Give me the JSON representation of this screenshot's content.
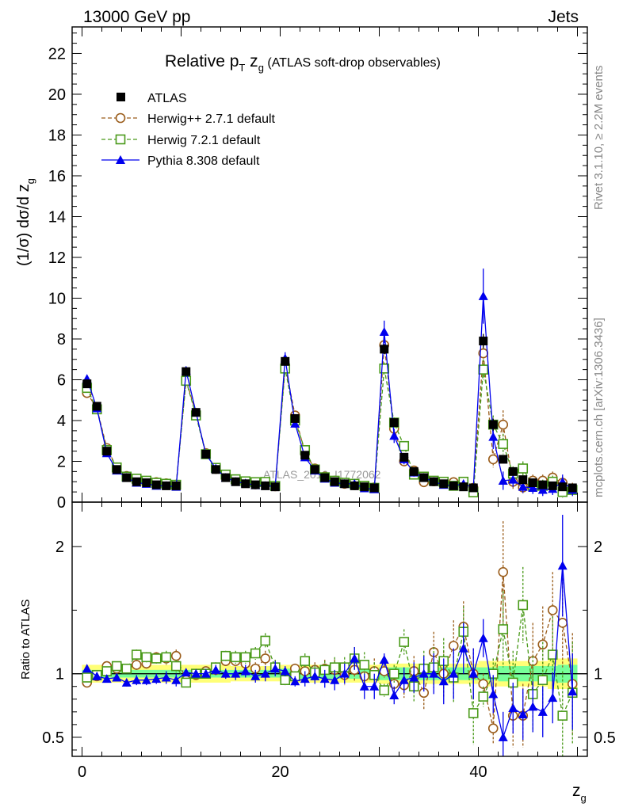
{
  "header": {
    "left": "13000 GeV pp",
    "right": "Jets"
  },
  "side_labels": {
    "rivet": "Rivet 3.1.10, ≥ 2.2M events",
    "mcplots": "mcplots.cern.ch [arXiv:1306.3436]"
  },
  "watermark": "ATLAS_2019_I1772062",
  "chart_data": [
    {
      "type": "scatter",
      "panel": "main",
      "title_main": "Relative p",
      "title_sub1": "T",
      "title_mid": " z",
      "title_sub2": "g",
      "title_tail": " (ATLAS soft-drop observables)",
      "ylabel": "(1/σ) dσ/d z",
      "ylabel_sub": "g",
      "xlabel": "z",
      "xlabel_sub": "g",
      "xlim": [
        -1,
        51
      ],
      "ylim": [
        0,
        23.3
      ],
      "yticks": [
        0,
        2,
        4,
        6,
        8,
        10,
        12,
        14,
        16,
        18,
        20,
        22
      ],
      "ytick_labels": [
        "0",
        "2",
        "4",
        "6",
        "8",
        "10",
        "12",
        "14",
        "16",
        "18",
        "20",
        "22"
      ],
      "x": [
        0.5,
        1.5,
        2.5,
        3.5,
        4.5,
        5.5,
        6.5,
        7.5,
        8.5,
        9.5,
        10.5,
        11.5,
        12.5,
        13.5,
        14.5,
        15.5,
        16.5,
        17.5,
        18.5,
        19.5,
        20.5,
        21.5,
        22.5,
        23.5,
        24.5,
        25.5,
        26.5,
        27.5,
        28.5,
        29.5,
        30.5,
        31.5,
        32.5,
        33.5,
        34.5,
        35.5,
        36.5,
        37.5,
        38.5,
        39.5,
        40.5,
        41.5,
        42.5,
        43.5,
        44.5,
        45.5,
        46.5,
        47.5,
        48.5,
        49.5
      ],
      "series": [
        {
          "name": "ATLAS",
          "color": "#000000",
          "marker": "square-filled",
          "values": [
            5.8,
            4.7,
            2.5,
            1.6,
            1.2,
            1.0,
            0.95,
            0.85,
            0.8,
            0.8,
            6.4,
            4.4,
            2.35,
            1.6,
            1.2,
            1.0,
            0.9,
            0.85,
            0.8,
            0.75,
            6.9,
            4.1,
            2.3,
            1.6,
            1.2,
            1.0,
            0.9,
            0.8,
            0.75,
            0.7,
            7.5,
            3.9,
            2.2,
            1.5,
            1.2,
            1.0,
            0.9,
            0.8,
            0.75,
            0.7,
            7.9,
            3.8,
            2.1,
            1.5,
            1.1,
            0.95,
            0.85,
            0.8,
            0.75,
            0.7
          ],
          "errors": [
            0.15,
            0.1,
            0.08,
            0.06,
            0.05,
            0.05,
            0.05,
            0.05,
            0.05,
            0.05,
            0.15,
            0.12,
            0.08,
            0.06,
            0.05,
            0.05,
            0.05,
            0.05,
            0.05,
            0.05,
            0.2,
            0.15,
            0.1,
            0.08,
            0.06,
            0.06,
            0.06,
            0.06,
            0.05,
            0.05,
            0.25,
            0.2,
            0.15,
            0.1,
            0.08,
            0.08,
            0.07,
            0.07,
            0.06,
            0.06,
            0.35,
            0.3,
            0.2,
            0.15,
            0.12,
            0.12,
            0.1,
            0.1,
            0.1,
            0.1
          ]
        },
        {
          "name": "Herwig++ 2.7.1 default",
          "color": "#9a5c1a",
          "marker": "circle-open",
          "dash": "5,3",
          "values": [
            5.35,
            4.6,
            2.65,
            1.7,
            1.28,
            1.1,
            1.04,
            0.98,
            0.92,
            0.85,
            6.0,
            4.35,
            2.4,
            1.63,
            1.32,
            1.08,
            0.98,
            0.87,
            0.92,
            0.78,
            6.7,
            4.25,
            2.4,
            1.65,
            1.25,
            1.05,
            0.9,
            0.83,
            0.73,
            0.72,
            7.7,
            3.6,
            2.0,
            1.55,
            0.98,
            1.02,
            0.96,
            0.98,
            0.99,
            0.7,
            7.3,
            2.1,
            3.8,
            1.0,
            0.72,
            1.05,
            1.05,
            1.2,
            0.95,
            0.65
          ],
          "errors": [
            0.15,
            0.12,
            0.1,
            0.08,
            0.06,
            0.06,
            0.06,
            0.06,
            0.06,
            0.06,
            0.2,
            0.15,
            0.1,
            0.08,
            0.06,
            0.06,
            0.06,
            0.06,
            0.06,
            0.06,
            0.2,
            0.18,
            0.12,
            0.1,
            0.08,
            0.08,
            0.08,
            0.08,
            0.07,
            0.07,
            0.3,
            0.25,
            0.2,
            0.15,
            0.15,
            0.15,
            0.15,
            0.15,
            0.15,
            0.12,
            0.45,
            0.4,
            0.7,
            0.35,
            0.3,
            0.3,
            0.3,
            0.3,
            0.3,
            0.3
          ]
        },
        {
          "name": "Herwig 7.2.1 default",
          "color": "#4a9a1a",
          "marker": "square-open",
          "dash": "5,3",
          "values": [
            5.6,
            4.55,
            2.55,
            1.7,
            1.25,
            1.15,
            1.05,
            0.95,
            0.9,
            0.85,
            5.95,
            4.25,
            2.35,
            1.68,
            1.35,
            1.12,
            1.02,
            0.98,
            0.99,
            0.79,
            6.55,
            4.0,
            2.55,
            1.6,
            1.22,
            1.05,
            0.95,
            0.9,
            0.8,
            0.7,
            6.55,
            3.9,
            2.75,
            1.35,
            1.25,
            1.05,
            1.0,
            0.8,
            1.0,
            0.48,
            6.5,
            3.8,
            2.85,
            1.4,
            1.65,
            0.8,
            0.8,
            1.0,
            0.5,
            0.6
          ],
          "errors": [
            0.15,
            0.12,
            0.1,
            0.08,
            0.06,
            0.06,
            0.06,
            0.06,
            0.06,
            0.06,
            0.2,
            0.15,
            0.1,
            0.08,
            0.06,
            0.06,
            0.06,
            0.06,
            0.06,
            0.06,
            0.2,
            0.18,
            0.12,
            0.1,
            0.08,
            0.08,
            0.08,
            0.08,
            0.07,
            0.07,
            0.3,
            0.25,
            0.2,
            0.15,
            0.15,
            0.15,
            0.15,
            0.15,
            0.15,
            0.12,
            0.5,
            0.45,
            0.5,
            0.35,
            0.35,
            0.3,
            0.3,
            0.3,
            0.3,
            0.3
          ]
        },
        {
          "name": "Pythia 8.308 default",
          "color": "#0000ee",
          "marker": "triangle-filled",
          "dash": "",
          "values": [
            6.05,
            4.6,
            2.4,
            1.55,
            1.2,
            0.95,
            0.9,
            0.8,
            0.8,
            0.75,
            6.45,
            4.4,
            2.35,
            1.65,
            1.2,
            1.0,
            0.92,
            0.83,
            0.8,
            0.78,
            7.05,
            3.85,
            2.2,
            1.55,
            1.15,
            0.95,
            0.9,
            0.9,
            0.68,
            0.63,
            8.35,
            3.25,
            2.1,
            1.45,
            1.2,
            1.0,
            0.85,
            0.8,
            0.9,
            0.7,
            10.1,
            3.2,
            1.05,
            1.1,
            0.75,
            0.7,
            0.6,
            0.65,
            1.0,
            0.6
          ],
          "errors": [
            0.15,
            0.12,
            0.1,
            0.08,
            0.06,
            0.06,
            0.06,
            0.06,
            0.06,
            0.06,
            0.2,
            0.15,
            0.1,
            0.08,
            0.06,
            0.06,
            0.06,
            0.06,
            0.06,
            0.06,
            0.3,
            0.2,
            0.15,
            0.1,
            0.08,
            0.08,
            0.08,
            0.08,
            0.07,
            0.07,
            0.55,
            0.35,
            0.25,
            0.2,
            0.15,
            0.15,
            0.15,
            0.15,
            0.15,
            0.12,
            1.35,
            0.6,
            0.45,
            0.35,
            0.3,
            0.3,
            0.3,
            0.3,
            0.35,
            0.3
          ]
        }
      ]
    },
    {
      "type": "scatter",
      "panel": "ratio",
      "ylabel": "Ratio to ATLAS",
      "ylim": [
        0.35,
        2.35
      ],
      "yticks": [
        0.5,
        1,
        2
      ],
      "ytick_labels": [
        "0.5",
        "1",
        "2"
      ],
      "xticks": [
        0,
        20,
        40
      ],
      "xtick_labels": [
        "0",
        "20",
        "40"
      ],
      "band_inner": [
        0.03,
        0.03,
        0.03,
        0.03,
        0.03,
        0.03,
        0.03,
        0.03,
        0.03,
        0.03,
        0.03,
        0.03,
        0.03,
        0.03,
        0.03,
        0.03,
        0.03,
        0.03,
        0.03,
        0.03,
        0.04,
        0.04,
        0.04,
        0.04,
        0.04,
        0.04,
        0.04,
        0.04,
        0.04,
        0.04,
        0.05,
        0.05,
        0.05,
        0.05,
        0.05,
        0.05,
        0.05,
        0.05,
        0.05,
        0.05,
        0.05,
        0.05,
        0.06,
        0.06,
        0.06,
        0.06,
        0.06,
        0.06,
        0.07,
        0.07
      ],
      "band_outer": [
        0.07,
        0.07,
        0.07,
        0.07,
        0.07,
        0.07,
        0.07,
        0.07,
        0.07,
        0.07,
        0.07,
        0.07,
        0.07,
        0.07,
        0.07,
        0.06,
        0.06,
        0.06,
        0.06,
        0.06,
        0.07,
        0.07,
        0.07,
        0.07,
        0.07,
        0.07,
        0.07,
        0.07,
        0.07,
        0.07,
        0.08,
        0.08,
        0.08,
        0.08,
        0.08,
        0.08,
        0.08,
        0.08,
        0.08,
        0.08,
        0.1,
        0.1,
        0.1,
        0.1,
        0.1,
        0.1,
        0.1,
        0.12,
        0.12,
        0.12
      ],
      "series": [
        {
          "name": "Herwig++ 2.7.1 default",
          "values": [
            0.93,
            0.98,
            1.06,
            1.04,
            1.04,
            1.07,
            1.08,
            1.13,
            1.12,
            1.14,
            0.95,
            0.99,
            1.02,
            1.03,
            1.1,
            1.1,
            1.08,
            1.04,
            1.12,
            1.05,
            0.97,
            1.04,
            1.02,
            1.03,
            1.04,
            1.03,
            0.99,
            1.03,
            0.98,
            1.02,
            1.02,
            0.92,
            0.91,
            1.02,
            0.85,
            1.17,
            1.0,
            1.22,
            1.37,
            1.0,
            0.92,
            0.57,
            1.8,
            0.67,
            0.67,
            1.1,
            1.23,
            1.5,
            1.4,
            0.92
          ],
          "errors": [
            0.02,
            0.02,
            0.03,
            0.03,
            0.03,
            0.04,
            0.04,
            0.04,
            0.05,
            0.05,
            0.02,
            0.03,
            0.03,
            0.04,
            0.04,
            0.05,
            0.05,
            0.05,
            0.06,
            0.06,
            0.04,
            0.04,
            0.06,
            0.06,
            0.07,
            0.08,
            0.08,
            0.09,
            0.1,
            0.1,
            0.05,
            0.07,
            0.1,
            0.12,
            0.14,
            0.16,
            0.18,
            0.2,
            0.2,
            0.2,
            0.08,
            0.12,
            0.4,
            0.25,
            0.25,
            0.3,
            0.3,
            0.3,
            0.35,
            0.4
          ]
        },
        {
          "name": "Herwig 7.2.1 default",
          "values": [
            0.97,
            0.99,
            1.02,
            1.06,
            1.04,
            1.15,
            1.13,
            1.12,
            1.13,
            1.06,
            0.93,
            1.0,
            1.0,
            1.05,
            1.14,
            1.13,
            1.13,
            1.16,
            1.26,
            1.05,
            0.95,
            0.98,
            1.1,
            1.01,
            1.03,
            1.05,
            1.05,
            1.12,
            1.07,
            0.99,
            0.87,
            1.0,
            1.25,
            0.9,
            1.04,
            1.05,
            1.1,
            0.97,
            1.33,
            0.69,
            0.82,
            1.0,
            1.35,
            0.93,
            1.54,
            0.84,
            0.95,
            1.15,
            0.67,
            0.85
          ],
          "errors": [
            0.02,
            0.02,
            0.03,
            0.03,
            0.03,
            0.04,
            0.04,
            0.04,
            0.05,
            0.05,
            0.02,
            0.03,
            0.03,
            0.04,
            0.04,
            0.05,
            0.05,
            0.05,
            0.06,
            0.06,
            0.04,
            0.04,
            0.06,
            0.06,
            0.07,
            0.08,
            0.08,
            0.09,
            0.1,
            0.1,
            0.05,
            0.07,
            0.1,
            0.12,
            0.14,
            0.16,
            0.18,
            0.2,
            0.2,
            0.25,
            0.08,
            0.12,
            0.3,
            0.25,
            0.3,
            0.3,
            0.3,
            0.3,
            0.35,
            0.4
          ]
        },
        {
          "name": "Pythia 8.308 default",
          "values": [
            1.04,
            0.98,
            0.96,
            0.97,
            0.93,
            0.95,
            0.95,
            0.96,
            0.97,
            0.95,
            1.01,
            1.0,
            1.0,
            1.03,
            1.0,
            1.0,
            1.02,
            0.98,
            1.0,
            1.04,
            1.02,
            0.94,
            0.96,
            0.98,
            0.96,
            0.95,
            1.0,
            1.12,
            0.9,
            0.9,
            1.11,
            0.83,
            0.95,
            0.97,
            1.0,
            1.0,
            0.94,
            1.0,
            1.2,
            1.0,
            1.28,
            0.84,
            0.5,
            0.73,
            0.68,
            0.74,
            0.7,
            0.81,
            1.85,
            0.86
          ],
          "errors": [
            0.02,
            0.02,
            0.03,
            0.03,
            0.03,
            0.04,
            0.04,
            0.04,
            0.05,
            0.05,
            0.02,
            0.03,
            0.03,
            0.04,
            0.04,
            0.05,
            0.05,
            0.05,
            0.06,
            0.06,
            0.04,
            0.04,
            0.06,
            0.06,
            0.07,
            0.08,
            0.08,
            0.09,
            0.1,
            0.1,
            0.05,
            0.07,
            0.1,
            0.12,
            0.14,
            0.16,
            0.18,
            0.2,
            0.2,
            0.2,
            0.15,
            0.15,
            0.2,
            0.2,
            0.2,
            0.2,
            0.2,
            0.2,
            0.4,
            0.3
          ]
        }
      ]
    }
  ]
}
